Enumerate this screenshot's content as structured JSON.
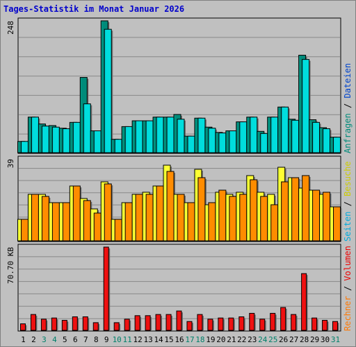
{
  "title": "Tages-Statistik im Monat Januar 2026",
  "chart_data": {
    "type": "bar",
    "days": [
      "1",
      "2",
      "3",
      "4",
      "5",
      "6",
      "7",
      "8",
      "9",
      "10",
      "11",
      "12",
      "13",
      "14",
      "15",
      "16",
      "17",
      "18",
      "19",
      "20",
      "21",
      "22",
      "23",
      "24",
      "25",
      "26",
      "27",
      "28",
      "29",
      "30",
      "31"
    ],
    "weekend_days": [
      "3",
      "4",
      "10",
      "11",
      "17",
      "18",
      "24",
      "25",
      "31"
    ],
    "panels": [
      {
        "id": "requests",
        "ymax": 248,
        "ymax_label": "248",
        "legend": [
          {
            "label": "Anfragen",
            "color": "#008b7a"
          },
          {
            "label": "Dateien",
            "color": "#0044cc"
          }
        ],
        "series": [
          {
            "name": "Anfragen",
            "color": "#008b7a",
            "values": [
              20,
              66,
              53,
              50,
              45,
              56,
              141,
              40,
              248,
              24,
              48,
              59,
              59,
              66,
              66,
              71,
              30,
              64,
              47,
              37,
              40,
              57,
              66,
              39,
              66,
              85,
              62,
              183,
              61,
              46,
              28
            ]
          },
          {
            "name": "Dateien",
            "color": "#00dddd",
            "values": [
              20,
              66,
              49,
              47,
              44,
              56,
              91,
              40,
              232,
              24,
              48,
              59,
              59,
              66,
              66,
              62,
              30,
              64,
              45,
              36,
              40,
              57,
              66,
              35,
              66,
              85,
              60,
              175,
              56,
              44,
              28
            ]
          }
        ]
      },
      {
        "id": "visits",
        "ymax": 39,
        "ymax_label": "39",
        "legend": [
          {
            "label": "Seiten",
            "color": "#00aadd"
          },
          {
            "label": "Besuche",
            "color": "#cccc00"
          }
        ],
        "series": [
          {
            "name": "Seiten",
            "color": "#ffff33",
            "values": [
              10,
              22,
              22,
              18,
              18,
              26,
              20,
              15,
              28,
              10,
              18,
              22,
              23,
              26,
              36,
              22,
              18,
              34,
              17,
              23,
              22,
              23,
              31,
              23,
              22,
              35,
              30,
              25,
              24,
              22,
              16
            ]
          },
          {
            "name": "Besuche",
            "color": "#ff8c00",
            "values": [
              10,
              22,
              21,
              18,
              18,
              26,
              19,
              13,
              27,
              10,
              18,
              22,
              22,
              26,
              33,
              22,
              18,
              30,
              18,
              24,
              21,
              22,
              29,
              21,
              17,
              28,
              30,
              31,
              24,
              23,
              16
            ]
          }
        ]
      },
      {
        "id": "volume",
        "ymax": 70.7,
        "ymax_label": "70.70 KB",
        "legend": [
          {
            "label": "Rechner",
            "color": "#ff7700"
          },
          {
            "label": "Volumen",
            "color": "#ee0000"
          }
        ],
        "series": [
          {
            "name": "Volumen",
            "color": "#ee1111",
            "values": [
              5,
              13,
              9,
              10,
              8,
              11,
              11,
              6,
              70.7,
              6,
              9,
              12,
              12,
              13,
              13,
              16,
              7,
              13,
              9,
              10,
              10,
              11,
              14,
              9,
              14,
              19,
              13,
              48,
              10,
              8,
              7
            ]
          }
        ]
      }
    ]
  }
}
